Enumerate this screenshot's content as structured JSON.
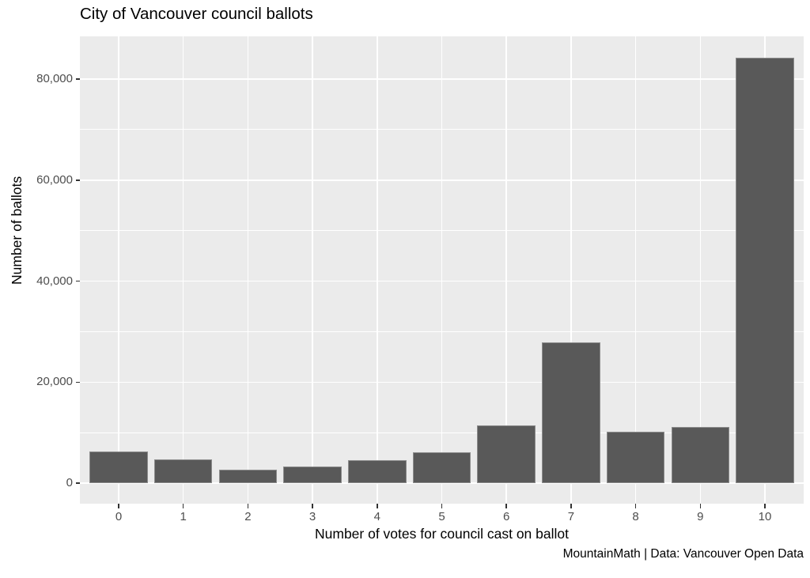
{
  "chart_data": {
    "type": "bar",
    "title": "City of Vancouver council ballots",
    "xlabel": "Number of votes for council cast on ballot",
    "ylabel": "Number of ballots",
    "caption": "MountainMath | Data: Vancouver Open Data",
    "categories": [
      "0",
      "1",
      "2",
      "3",
      "4",
      "5",
      "6",
      "7",
      "8",
      "9",
      "10"
    ],
    "values": [
      6300,
      4700,
      2600,
      3250,
      4600,
      6150,
      11400,
      27800,
      10200,
      11100,
      84300
    ],
    "y_major_ticks": [
      0,
      20000,
      40000,
      60000,
      80000
    ],
    "y_tick_labels": [
      "0",
      "20,000",
      "40,000",
      "60,000",
      "80,000"
    ],
    "y_minor_ticks": [
      10000,
      30000,
      50000,
      70000
    ],
    "ylim": [
      0,
      88400
    ],
    "legend": "none",
    "grid": "on",
    "bar_width_ratio": 0.9,
    "colors": {
      "bar_fill": "#595959",
      "bar_edge": "#8c8c8c",
      "panel_background": "#EBEBEB",
      "gridline": "#FFFFFF",
      "tick_label": "#4D4D4D",
      "tick_mark": "#333333",
      "title_text": "#000000"
    }
  }
}
